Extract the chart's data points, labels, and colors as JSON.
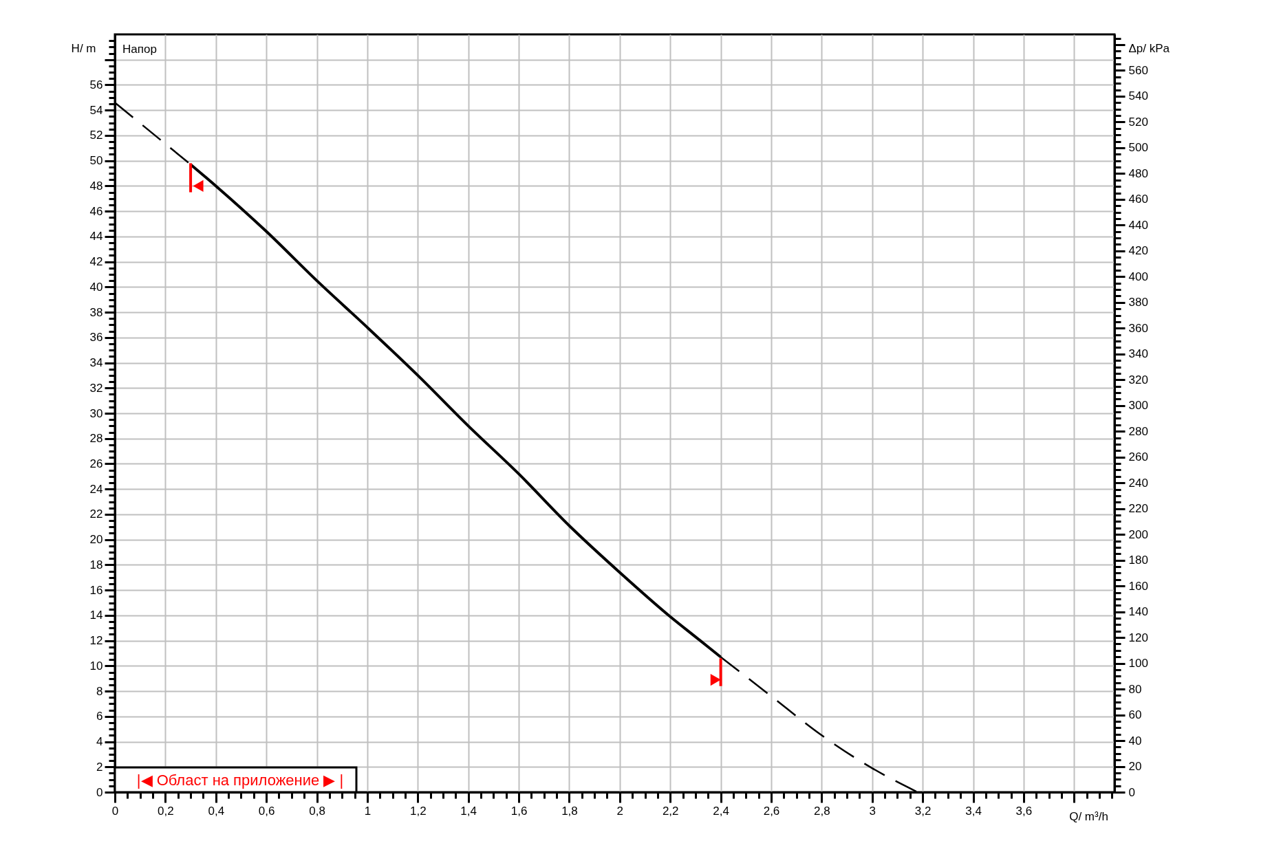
{
  "chart_data": {
    "type": "line",
    "xlabel": "Q/ m³/h",
    "ylabel": "H/ m",
    "y2label": "Δp/ kPa",
    "annotations": [
      "Напор",
      "|◀ Област на приложение ▶ |"
    ],
    "series": [
      {
        "line_style": "dashed",
        "color": "#000000",
        "x": [
          0,
          0.3
        ],
        "values": [
          54.6,
          49.7
        ]
      },
      {
        "line_style": "solid",
        "color": "#000000",
        "x": [
          0.3,
          0.4,
          0.6,
          0.8,
          1.0,
          1.2,
          1.4,
          1.6,
          1.8,
          2.0,
          2.2,
          2.3,
          2.4
        ],
        "values": [
          49.7,
          48.0,
          44.4,
          40.5,
          36.8,
          33.0,
          29.0,
          25.2,
          21.1,
          17.4,
          13.9,
          12.3,
          10.7
        ]
      },
      {
        "line_style": "dashed",
        "color": "#000000",
        "x": [
          2.4,
          2.6,
          2.8,
          3.0,
          3.18
        ],
        "values": [
          10.7,
          7.6,
          4.5,
          1.9,
          0
        ]
      },
      {
        "line_style": "solid",
        "color": "#ff0000",
        "x": [
          0.3,
          0.3
        ],
        "values": [
          49.8,
          47.5
        ]
      },
      {
        "line_style": "solid",
        "color": "#ff0000",
        "x": [
          2.4,
          2.4
        ],
        "values": [
          10.6,
          8.4
        ]
      },
      {
        "type": "scatter",
        "marker": "triangle",
        "color": "#ff0000",
        "x": [
          0.33,
          2.38
        ],
        "values": [
          48.0,
          8.9
        ]
      }
    ],
    "grid": true,
    "xlim": [
      0,
      3.96
    ],
    "ylim": [
      0,
      60
    ],
    "y2lim": [
      0,
      588
    ],
    "xticks": [
      0,
      {
        "value": 0.05,
        "label": null
      },
      {
        "value": 0.1,
        "label": null
      },
      {
        "value": 0.15,
        "label": null
      },
      {
        "value": 0.2,
        "label": "0,2"
      },
      {
        "value": 0.25,
        "label": null
      },
      {
        "value": 0.3,
        "label": null
      },
      {
        "value": 0.35,
        "label": null
      },
      {
        "value": 0.4,
        "label": "0,4"
      },
      {
        "value": 0.45,
        "label": null
      },
      {
        "value": 0.5,
        "label": null
      },
      {
        "value": 0.55,
        "label": null
      },
      {
        "value": 0.6,
        "label": "0,6"
      },
      {
        "value": 0.65,
        "label": null
      },
      {
        "value": 0.7,
        "label": null
      },
      {
        "value": 0.75,
        "label": null
      },
      {
        "value": 0.8,
        "label": "0,8"
      },
      {
        "value": 0.85,
        "label": null
      },
      {
        "value": 0.9,
        "label": null
      },
      {
        "value": 0.95,
        "label": null
      },
      1,
      {
        "value": 1.05,
        "label": null
      },
      {
        "value": 1.1,
        "label": null
      },
      {
        "value": 1.15,
        "label": null
      },
      {
        "value": 1.2,
        "label": "1,2"
      },
      {
        "value": 1.25,
        "label": null
      },
      {
        "value": 1.3,
        "label": null
      },
      {
        "value": 1.35,
        "label": null
      },
      {
        "value": 1.4,
        "label": "1,4"
      },
      {
        "value": 1.45,
        "label": null
      },
      {
        "value": 1.5,
        "label": null
      },
      {
        "value": 1.55,
        "label": null
      },
      {
        "value": 1.6,
        "label": "1,6"
      },
      {
        "value": 1.65,
        "label": null
      },
      {
        "value": 1.7,
        "label": null
      },
      {
        "value": 1.75,
        "label": null
      },
      {
        "value": 1.8,
        "label": "1,8"
      },
      {
        "value": 1.85,
        "label": null
      },
      {
        "value": 1.9,
        "label": null
      },
      {
        "value": 1.95,
        "label": null
      },
      2,
      {
        "value": 2.05,
        "label": null
      },
      {
        "value": 2.1,
        "label": null
      },
      {
        "value": 2.15,
        "label": null
      },
      {
        "value": 2.2,
        "label": "2,2"
      },
      {
        "value": 2.25,
        "label": null
      },
      {
        "value": 2.3,
        "label": null
      },
      {
        "value": 2.35,
        "label": null
      },
      {
        "value": 2.4,
        "label": "2,4"
      },
      {
        "value": 2.45,
        "label": null
      },
      {
        "value": 2.5,
        "label": null
      },
      {
        "value": 2.55,
        "label": null
      },
      {
        "value": 2.6,
        "label": "2,6"
      },
      {
        "value": 2.65,
        "label": null
      },
      {
        "value": 2.7,
        "label": null
      },
      {
        "value": 2.75,
        "label": null
      },
      {
        "value": 2.8,
        "label": "2,8"
      },
      {
        "value": 2.85,
        "label": null
      },
      {
        "value": 2.9,
        "label": null
      },
      {
        "value": 2.95,
        "label": null
      },
      3,
      {
        "value": 3.05,
        "label": null
      },
      {
        "value": 3.1,
        "label": null
      },
      {
        "value": 3.15,
        "label": null
      },
      {
        "value": 3.2,
        "label": "3,2"
      },
      {
        "value": 3.25,
        "label": null
      },
      {
        "value": 3.3,
        "label": null
      },
      {
        "value": 3.35,
        "label": null
      },
      {
        "value": 3.4,
        "label": "3,4"
      },
      {
        "value": 3.45,
        "label": null
      },
      {
        "value": 3.5,
        "label": null
      },
      {
        "value": 3.55,
        "label": null
      },
      {
        "value": 3.6,
        "label": "3,6"
      },
      {
        "value": 3.65,
        "label": null
      },
      {
        "value": 3.7,
        "label": null
      },
      {
        "value": 3.75,
        "label": null
      },
      {
        "value": 3.8,
        "label": null
      },
      {
        "value": 3.85,
        "label": null
      },
      {
        "value": 3.9,
        "label": null
      },
      {
        "value": 3.95,
        "label": null
      }
    ],
    "yticks": [
      0,
      {
        "value": 0.5,
        "label": null
      },
      {
        "value": 1,
        "label": null
      },
      {
        "value": 1.5,
        "label": null
      },
      2,
      {
        "value": 2.5,
        "label": null
      },
      {
        "value": 3,
        "label": null
      },
      {
        "value": 3.5,
        "label": null
      },
      4,
      {
        "value": 4.5,
        "label": null
      },
      {
        "value": 5,
        "label": null
      },
      {
        "value": 5.5,
        "label": null
      },
      6,
      {
        "value": 6.5,
        "label": null
      },
      {
        "value": 7,
        "label": null
      },
      {
        "value": 7.5,
        "label": null
      },
      8,
      {
        "value": 8.5,
        "label": null
      },
      {
        "value": 9,
        "label": null
      },
      {
        "value": 9.5,
        "label": null
      },
      10,
      {
        "value": 10.5,
        "label": null
      },
      {
        "value": 11,
        "label": null
      },
      {
        "value": 11.5,
        "label": null
      },
      12,
      {
        "value": 12.5,
        "label": null
      },
      {
        "value": 13,
        "label": null
      },
      {
        "value": 13.5,
        "label": null
      },
      14,
      {
        "value": 14.5,
        "label": null
      },
      {
        "value": 15,
        "label": null
      },
      {
        "value": 15.5,
        "label": null
      },
      16,
      {
        "value": 16.5,
        "label": null
      },
      {
        "value": 17,
        "label": null
      },
      {
        "value": 17.5,
        "label": null
      },
      18,
      {
        "value": 18.5,
        "label": null
      },
      {
        "value": 19,
        "label": null
      },
      {
        "value": 19.5,
        "label": null
      },
      20,
      {
        "value": 20.5,
        "label": null
      },
      {
        "value": 21,
        "label": null
      },
      {
        "value": 21.5,
        "label": null
      },
      22,
      {
        "value": 22.5,
        "label": null
      },
      {
        "value": 23,
        "label": null
      },
      {
        "value": 23.5,
        "label": null
      },
      24,
      {
        "value": 24.5,
        "label": null
      },
      {
        "value": 25,
        "label": null
      },
      {
        "value": 25.5,
        "label": null
      },
      26,
      {
        "value": 26.5,
        "label": null
      },
      {
        "value": 27,
        "label": null
      },
      {
        "value": 27.5,
        "label": null
      },
      28,
      {
        "value": 28.5,
        "label": null
      },
      {
        "value": 29,
        "label": null
      },
      {
        "value": 29.5,
        "label": null
      },
      30,
      {
        "value": 30.5,
        "label": null
      },
      {
        "value": 31,
        "label": null
      },
      {
        "value": 31.5,
        "label": null
      },
      32,
      {
        "value": 32.5,
        "label": null
      },
      {
        "value": 33,
        "label": null
      },
      {
        "value": 33.5,
        "label": null
      },
      34,
      {
        "value": 34.5,
        "label": null
      },
      {
        "value": 35,
        "label": null
      },
      {
        "value": 35.5,
        "label": null
      },
      36,
      {
        "value": 36.5,
        "label": null
      },
      {
        "value": 37,
        "label": null
      },
      {
        "value": 37.5,
        "label": null
      },
      38,
      {
        "value": 38.5,
        "label": null
      },
      {
        "value": 39,
        "label": null
      },
      {
        "value": 39.5,
        "label": null
      },
      40,
      {
        "value": 40.5,
        "label": null
      },
      {
        "value": 41,
        "label": null
      },
      {
        "value": 41.5,
        "label": null
      },
      42,
      {
        "value": 42.5,
        "label": null
      },
      {
        "value": 43,
        "label": null
      },
      {
        "value": 43.5,
        "label": null
      },
      44,
      {
        "value": 44.5,
        "label": null
      },
      {
        "value": 45,
        "label": null
      },
      {
        "value": 45.5,
        "label": null
      },
      46,
      {
        "value": 46.5,
        "label": null
      },
      {
        "value": 47,
        "label": null
      },
      {
        "value": 47.5,
        "label": null
      },
      48,
      {
        "value": 48.5,
        "label": null
      },
      {
        "value": 49,
        "label": null
      },
      {
        "value": 49.5,
        "label": null
      },
      50,
      {
        "value": 50.5,
        "label": null
      },
      {
        "value": 51,
        "label": null
      },
      {
        "value": 51.5,
        "label": null
      },
      52,
      {
        "value": 52.5,
        "label": null
      },
      {
        "value": 53,
        "label": null
      },
      {
        "value": 53.5,
        "label": null
      },
      54,
      {
        "value": 54.5,
        "label": null
      },
      {
        "value": 55,
        "label": null
      },
      {
        "value": 55.5,
        "label": null
      },
      56,
      {
        "value": 56.5,
        "label": null
      },
      {
        "value": 57,
        "label": null
      },
      {
        "value": 57.5,
        "label": null
      },
      {
        "value": 58,
        "label": null
      },
      {
        "value": 58.5,
        "label": null
      },
      {
        "value": 59,
        "label": null
      },
      {
        "value": 59.5,
        "label": null
      }
    ],
    "y2ticks": [
      0,
      {
        "value": 5,
        "label": null
      },
      {
        "value": 10,
        "label": null
      },
      {
        "value": 15,
        "label": null
      },
      20,
      {
        "value": 25,
        "label": null
      },
      {
        "value": 30,
        "label": null
      },
      {
        "value": 35,
        "label": null
      },
      40,
      {
        "value": 45,
        "label": null
      },
      {
        "value": 50,
        "label": null
      },
      {
        "value": 55,
        "label": null
      },
      60,
      {
        "value": 65,
        "label": null
      },
      {
        "value": 70,
        "label": null
      },
      {
        "value": 75,
        "label": null
      },
      80,
      {
        "value": 85,
        "label": null
      },
      {
        "value": 90,
        "label": null
      },
      {
        "value": 95,
        "label": null
      },
      100,
      {
        "value": 105,
        "label": null
      },
      {
        "value": 110,
        "label": null
      },
      {
        "value": 115,
        "label": null
      },
      120,
      {
        "value": 125,
        "label": null
      },
      {
        "value": 130,
        "label": null
      },
      {
        "value": 135,
        "label": null
      },
      140,
      {
        "value": 145,
        "label": null
      },
      {
        "value": 150,
        "label": null
      },
      {
        "value": 155,
        "label": null
      },
      160,
      {
        "value": 165,
        "label": null
      },
      {
        "value": 170,
        "label": null
      },
      {
        "value": 175,
        "label": null
      },
      180,
      {
        "value": 185,
        "label": null
      },
      {
        "value": 190,
        "label": null
      },
      {
        "value": 195,
        "label": null
      },
      200,
      {
        "value": 205,
        "label": null
      },
      {
        "value": 210,
        "label": null
      },
      {
        "value": 215,
        "label": null
      },
      220,
      {
        "value": 225,
        "label": null
      },
      {
        "value": 230,
        "label": null
      },
      {
        "value": 235,
        "label": null
      },
      240,
      {
        "value": 245,
        "label": null
      },
      {
        "value": 250,
        "label": null
      },
      {
        "value": 255,
        "label": null
      },
      260,
      {
        "value": 265,
        "label": null
      },
      {
        "value": 270,
        "label": null
      },
      {
        "value": 275,
        "label": null
      },
      280,
      {
        "value": 285,
        "label": null
      },
      {
        "value": 290,
        "label": null
      },
      {
        "value": 295,
        "label": null
      },
      300,
      {
        "value": 305,
        "label": null
      },
      {
        "value": 310,
        "label": null
      },
      {
        "value": 315,
        "label": null
      },
      320,
      {
        "value": 325,
        "label": null
      },
      {
        "value": 330,
        "label": null
      },
      {
        "value": 335,
        "label": null
      },
      340,
      {
        "value": 345,
        "label": null
      },
      {
        "value": 350,
        "label": null
      },
      {
        "value": 355,
        "label": null
      },
      360,
      {
        "value": 365,
        "label": null
      },
      {
        "value": 370,
        "label": null
      },
      {
        "value": 375,
        "label": null
      },
      380,
      {
        "value": 385,
        "label": null
      },
      {
        "value": 390,
        "label": null
      },
      {
        "value": 395,
        "label": null
      },
      400,
      {
        "value": 405,
        "label": null
      },
      {
        "value": 410,
        "label": null
      },
      {
        "value": 415,
        "label": null
      },
      420,
      {
        "value": 425,
        "label": null
      },
      {
        "value": 430,
        "label": null
      },
      {
        "value": 435,
        "label": null
      },
      440,
      {
        "value": 445,
        "label": null
      },
      {
        "value": 450,
        "label": null
      },
      {
        "value": 455,
        "label": null
      },
      460,
      {
        "value": 465,
        "label": null
      },
      {
        "value": 470,
        "label": null
      },
      {
        "value": 475,
        "label": null
      },
      480,
      {
        "value": 485,
        "label": null
      },
      {
        "value": 490,
        "label": null
      },
      {
        "value": 495,
        "label": null
      },
      500,
      {
        "value": 505,
        "label": null
      },
      {
        "value": 510,
        "label": null
      },
      {
        "value": 515,
        "label": null
      },
      520,
      {
        "value": 525,
        "label": null
      },
      {
        "value": 530,
        "label": null
      },
      {
        "value": 535,
        "label": null
      },
      540,
      {
        "value": 545,
        "label": null
      },
      {
        "value": 550,
        "label": null
      },
      {
        "value": 555,
        "label": null
      },
      560,
      {
        "value": 565,
        "label": null
      },
      {
        "value": 570,
        "label": null
      },
      {
        "value": 575,
        "label": null
      },
      {
        "value": 580,
        "label": null
      },
      {
        "value": 585,
        "label": null
      }
    ]
  }
}
